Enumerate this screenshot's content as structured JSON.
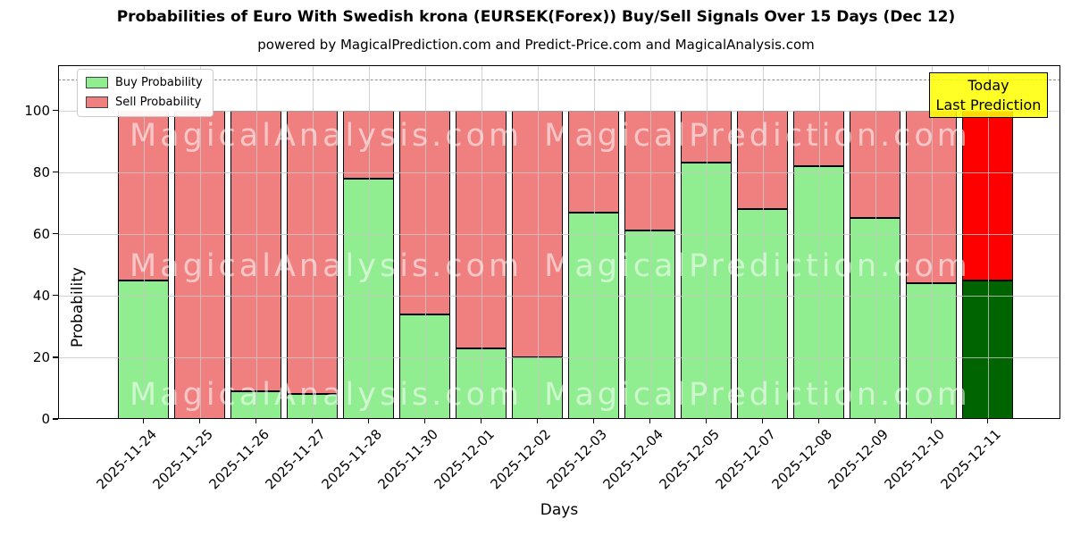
{
  "figure": {
    "title": "Probabilities of Euro With Swedish krona (EURSEK(Forex)) Buy/Sell Signals Over 15 Days (Dec 12)",
    "subtitle": "powered by MagicalPrediction.com and Predict-Price.com and MagicalAnalysis.com"
  },
  "axes": {
    "xlabel": "Days",
    "ylabel": "Probability",
    "y_ticks": [
      0,
      20,
      40,
      60,
      80,
      100
    ],
    "ylim": [
      0,
      115
    ],
    "dashed_guide_y": 110,
    "grid": true
  },
  "legend": {
    "position": "upper-left",
    "items": [
      {
        "label": "Buy Probability",
        "color": "#90ee90"
      },
      {
        "label": "Sell Probability",
        "color": "#f08080"
      }
    ]
  },
  "annotation_box": {
    "lines": [
      "Today",
      "Last Prediction"
    ],
    "bg_color": "#ffff00",
    "border_color": "#000000"
  },
  "watermarks": {
    "left_text": "MagicalAnalysis.com",
    "right_text": "MagicalPrediction.com"
  },
  "chart_data": {
    "type": "bar",
    "stacked": true,
    "title": "Probabilities of Euro With Swedish krona (EURSEK(Forex)) Buy/Sell Signals Over 15 Days (Dec 12)",
    "xlabel": "Days",
    "ylabel": "Probability",
    "ylim": [
      0,
      115
    ],
    "grid": true,
    "legend_position": "upper-left",
    "categories": [
      "2025-11-24",
      "2025-11-25",
      "2025-11-26",
      "2025-11-27",
      "2025-11-28",
      "2025-11-30",
      "2025-12-01",
      "2025-12-02",
      "2025-12-03",
      "2025-12-04",
      "2025-12-05",
      "2025-12-07",
      "2025-12-08",
      "2025-12-09",
      "2025-12-10",
      "2025-12-11"
    ],
    "series": [
      {
        "name": "Buy Probability",
        "color": "#90ee90",
        "values": [
          45,
          0,
          9,
          8,
          78,
          34,
          23,
          20,
          67,
          61,
          83,
          68,
          82,
          65,
          44,
          45
        ]
      },
      {
        "name": "Sell Probability",
        "color": "#f08080",
        "values": [
          55,
          100,
          91,
          92,
          22,
          66,
          77,
          80,
          33,
          39,
          17,
          32,
          18,
          35,
          56,
          55
        ]
      }
    ],
    "bar_edge_color": "#000000",
    "highlight_last_bar": {
      "index": 15,
      "buy_color": "#006400",
      "sell_color": "#ff0000",
      "annotation": "Today Last Prediction"
    }
  }
}
